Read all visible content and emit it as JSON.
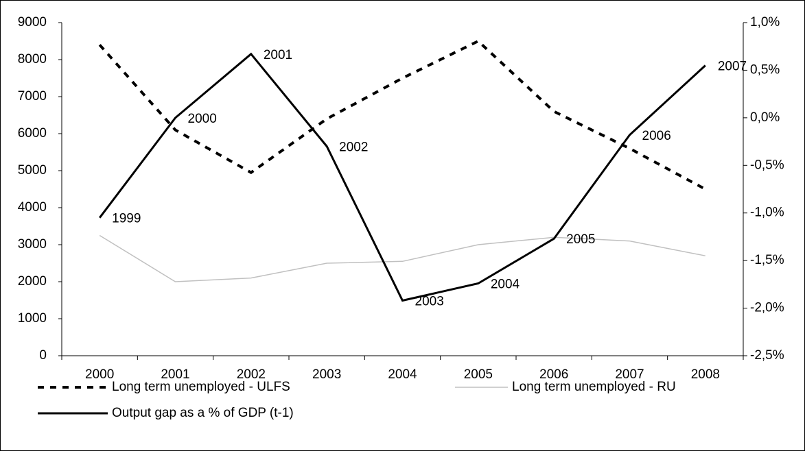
{
  "chart_data": {
    "type": "line",
    "categories": [
      "2000",
      "2001",
      "2002",
      "2003",
      "2004",
      "2005",
      "2006",
      "2007",
      "2008"
    ],
    "ylim": [
      0,
      9000
    ],
    "yticks": [
      0,
      1000,
      2000,
      3000,
      4000,
      5000,
      6000,
      7000,
      8000,
      9000
    ],
    "y2lim": [
      -2.5,
      1.0
    ],
    "y2ticks": [
      {
        "value": -2.5,
        "label": "-2,5%"
      },
      {
        "value": -2.0,
        "label": "-2,0%"
      },
      {
        "value": -1.5,
        "label": "-1,5%"
      },
      {
        "value": -1.0,
        "label": "-1,0%"
      },
      {
        "value": -0.5,
        "label": "-0,5%"
      },
      {
        "value": 0.0,
        "label": "0,0%"
      },
      {
        "value": 0.5,
        "label": "0,5%"
      },
      {
        "value": 1.0,
        "label": "1,0%"
      }
    ],
    "legend": "bottom",
    "series": [
      {
        "name": "Long term unemployed - ULFS",
        "color": "#000000",
        "line_style": "dashed",
        "values": [
          8400,
          6100,
          4950,
          6400,
          7500,
          8500,
          6600,
          5600,
          4500
        ]
      },
      {
        "name": "Long term unemployed - RU",
        "color": "#c0c0c0",
        "line_style": "solid",
        "values": [
          3250,
          2000,
          2100,
          2500,
          2550,
          3000,
          3200,
          3100,
          2700
        ]
      },
      {
        "name": "Output gap as a % of GDP (t-1)",
        "color": "#000000",
        "line_style": "thick",
        "axis": "y2",
        "values": [
          -1.05,
          0.0,
          0.67,
          -0.3,
          -1.92,
          -1.74,
          -1.27,
          -0.18,
          0.55
        ],
        "point_labels": [
          "1999",
          "2000",
          "2001",
          "2002",
          "2003",
          "2004",
          "2005",
          "2006",
          "2007"
        ]
      }
    ]
  }
}
